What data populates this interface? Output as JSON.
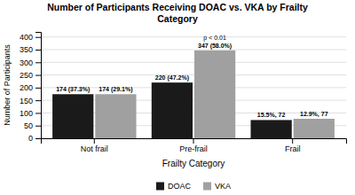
{
  "chart_data": {
    "type": "bar",
    "title": "Number of Participants Receiving DOAC vs. VKA by Frailty\nCategory",
    "xlabel": "Frailty Category",
    "ylabel": "Number of Participants",
    "categories": [
      "Not frail",
      "Pre-frail",
      "Frail"
    ],
    "series": [
      {
        "name": "DOAC",
        "color": "#1a1a1a",
        "values": [
          174,
          220,
          72
        ],
        "value_labels": [
          "174 (37.3%)",
          "220 (47.2%)",
          "15.5%, 72"
        ]
      },
      {
        "name": "VKA",
        "color": "#a0a0a0",
        "values": [
          174,
          347,
          77
        ],
        "value_labels": [
          "174 (29.1%)",
          "347 (58.0%)",
          "12.9%, 77"
        ]
      }
    ],
    "annotations": [
      {
        "text": "p < 0.01",
        "category": "Pre-frail",
        "series": "VKA"
      }
    ],
    "ylim": [
      0,
      420
    ],
    "yticks": [
      0,
      50,
      100,
      150,
      200,
      250,
      300,
      350,
      400
    ],
    "grid": true,
    "legend": "bottom",
    "data_labels": true
  }
}
